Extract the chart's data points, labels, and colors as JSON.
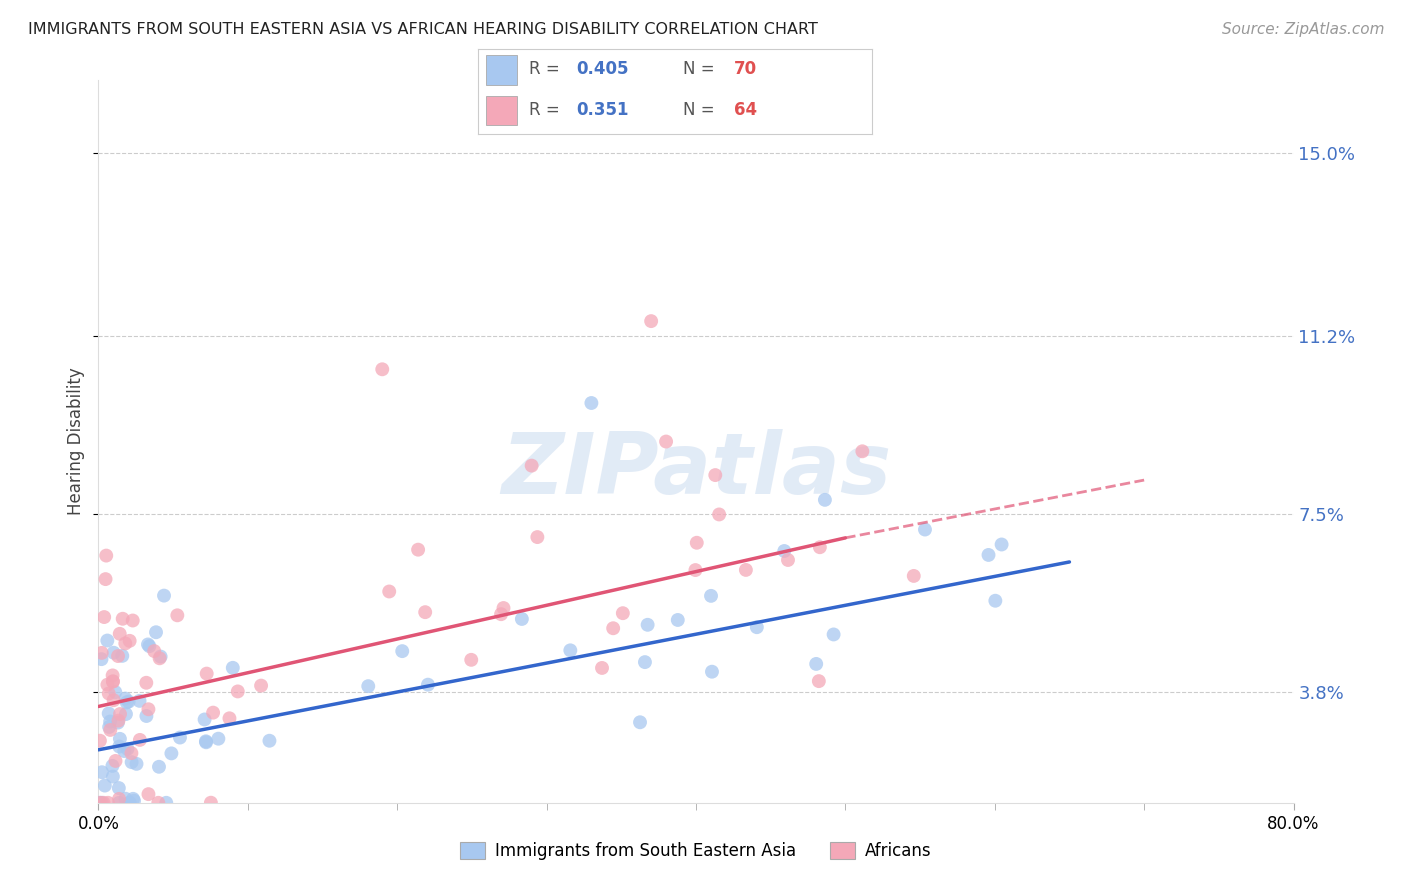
{
  "title": "IMMIGRANTS FROM SOUTH EASTERN ASIA VS AFRICAN HEARING DISABILITY CORRELATION CHART",
  "source": "Source: ZipAtlas.com",
  "ylabel": "Hearing Disability",
  "yticks": [
    3.8,
    7.5,
    11.2,
    15.0
  ],
  "ytick_labels": [
    "3.8%",
    "7.5%",
    "11.2%",
    "15.0%"
  ],
  "xlim": [
    0.0,
    80.0
  ],
  "ylim": [
    1.5,
    16.5
  ],
  "blue_R": 0.405,
  "blue_N": 70,
  "pink_R": 0.351,
  "pink_N": 64,
  "blue_color": "#A8C8F0",
  "pink_color": "#F4A8B8",
  "blue_line_color": "#3366CC",
  "pink_line_color": "#E05575",
  "legend_label_blue": "Immigrants from South Eastern Asia",
  "legend_label_pink": "Africans",
  "blue_line_x0": 0.0,
  "blue_line_y0": 2.6,
  "blue_line_x1": 65.0,
  "blue_line_y1": 6.5,
  "pink_line_x0": 0.0,
  "pink_line_y0": 3.5,
  "pink_line_x1": 50.0,
  "pink_line_y1": 7.0,
  "pink_dash_x0": 50.0,
  "pink_dash_y0": 7.0,
  "pink_dash_x1": 70.0,
  "pink_dash_y1": 8.2
}
